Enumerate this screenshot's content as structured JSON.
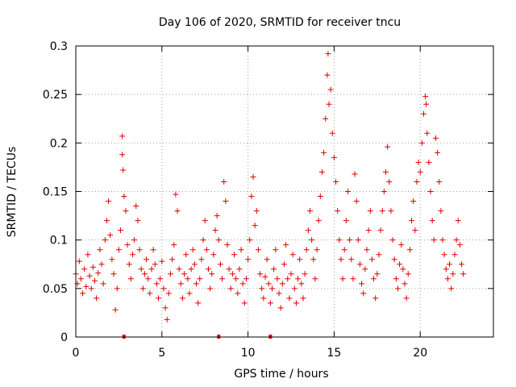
{
  "chart_data": {
    "type": "scatter",
    "title": "Day 106 of 2020, SRMTID for receiver tncu",
    "xlabel": "GPS time / hours",
    "ylabel": "SRMTID / TECUs",
    "xlim": [
      0,
      24.25
    ],
    "ylim": [
      0,
      0.3
    ],
    "xticks": [
      0,
      5,
      10,
      15,
      20
    ],
    "xtick_labels": [
      "0",
      "5",
      "10",
      "15",
      "20"
    ],
    "yticks": [
      0,
      0.05,
      0.1,
      0.15,
      0.2,
      0.25,
      0.3
    ],
    "ytick_labels": [
      "0",
      "0.05",
      "0.1",
      "0.15",
      "0.2",
      "0.25",
      "0.3"
    ],
    "grid": true,
    "marker_color": "#e00000",
    "marker": "plus",
    "zero_markers_x": [
      2.8,
      8.3,
      11.3
    ],
    "series": [
      {
        "name": "SRMTID",
        "points": [
          [
            0.0,
            0.065
          ],
          [
            0.1,
            0.055
          ],
          [
            0.2,
            0.078
          ],
          [
            0.3,
            0.06
          ],
          [
            0.4,
            0.045
          ],
          [
            0.5,
            0.07
          ],
          [
            0.6,
            0.052
          ],
          [
            0.7,
            0.085
          ],
          [
            0.8,
            0.063
          ],
          [
            0.9,
            0.05
          ],
          [
            1.0,
            0.072
          ],
          [
            1.1,
            0.058
          ],
          [
            1.2,
            0.04
          ],
          [
            1.3,
            0.066
          ],
          [
            1.4,
            0.09
          ],
          [
            1.5,
            0.075
          ],
          [
            1.6,
            0.055
          ],
          [
            1.7,
            0.1
          ],
          [
            1.8,
            0.12
          ],
          [
            1.9,
            0.14
          ],
          [
            2.0,
            0.105
          ],
          [
            2.1,
            0.08
          ],
          [
            2.2,
            0.065
          ],
          [
            2.3,
            0.028
          ],
          [
            2.4,
            0.05
          ],
          [
            2.5,
            0.09
          ],
          [
            2.6,
            0.11
          ],
          [
            2.7,
            0.207
          ],
          [
            2.7,
            0.188
          ],
          [
            2.75,
            0.172
          ],
          [
            2.8,
            0.145
          ],
          [
            2.9,
            0.13
          ],
          [
            3.0,
            0.095
          ],
          [
            3.1,
            0.075
          ],
          [
            3.2,
            0.06
          ],
          [
            3.3,
            0.085
          ],
          [
            3.4,
            0.1
          ],
          [
            3.5,
            0.135
          ],
          [
            3.6,
            0.12
          ],
          [
            3.7,
            0.09
          ],
          [
            3.8,
            0.07
          ],
          [
            3.9,
            0.05
          ],
          [
            4.0,
            0.065
          ],
          [
            4.1,
            0.08
          ],
          [
            4.2,
            0.06
          ],
          [
            4.3,
            0.045
          ],
          [
            4.4,
            0.07
          ],
          [
            4.5,
            0.09
          ],
          [
            4.6,
            0.075
          ],
          [
            4.7,
            0.055
          ],
          [
            4.8,
            0.04
          ],
          [
            4.9,
            0.06
          ],
          [
            5.0,
            0.078
          ],
          [
            5.1,
            0.05
          ],
          [
            5.2,
            0.03
          ],
          [
            5.3,
            0.018
          ],
          [
            5.4,
            0.045
          ],
          [
            5.5,
            0.065
          ],
          [
            5.6,
            0.08
          ],
          [
            5.7,
            0.095
          ],
          [
            5.8,
            0.147
          ],
          [
            5.9,
            0.13
          ],
          [
            6.0,
            0.07
          ],
          [
            6.1,
            0.055
          ],
          [
            6.2,
            0.04
          ],
          [
            6.3,
            0.065
          ],
          [
            6.4,
            0.085
          ],
          [
            6.5,
            0.06
          ],
          [
            6.6,
            0.045
          ],
          [
            6.7,
            0.07
          ],
          [
            6.8,
            0.09
          ],
          [
            6.9,
            0.075
          ],
          [
            7.0,
            0.055
          ],
          [
            7.1,
            0.035
          ],
          [
            7.2,
            0.06
          ],
          [
            7.3,
            0.08
          ],
          [
            7.4,
            0.1
          ],
          [
            7.5,
            0.12
          ],
          [
            7.6,
            0.09
          ],
          [
            7.7,
            0.07
          ],
          [
            7.8,
            0.05
          ],
          [
            7.9,
            0.065
          ],
          [
            8.0,
            0.085
          ],
          [
            8.1,
            0.11
          ],
          [
            8.2,
            0.125
          ],
          [
            8.3,
            0.1
          ],
          [
            8.4,
            0.075
          ],
          [
            8.5,
            0.06
          ],
          [
            8.6,
            0.16
          ],
          [
            8.7,
            0.14
          ],
          [
            8.8,
            0.095
          ],
          [
            8.9,
            0.07
          ],
          [
            9.0,
            0.05
          ],
          [
            9.1,
            0.065
          ],
          [
            9.2,
            0.085
          ],
          [
            9.3,
            0.06
          ],
          [
            9.4,
            0.045
          ],
          [
            9.5,
            0.07
          ],
          [
            9.6,
            0.09
          ],
          [
            9.7,
            0.055
          ],
          [
            9.8,
            0.035
          ],
          [
            9.9,
            0.06
          ],
          [
            10.0,
            0.08
          ],
          [
            10.1,
            0.1
          ],
          [
            10.2,
            0.145
          ],
          [
            10.3,
            0.165
          ],
          [
            10.4,
            0.115
          ],
          [
            10.5,
            0.13
          ],
          [
            10.6,
            0.09
          ],
          [
            10.7,
            0.065
          ],
          [
            10.8,
            0.05
          ],
          [
            10.9,
            0.04
          ],
          [
            11.0,
            0.062
          ],
          [
            11.1,
            0.08
          ],
          [
            11.2,
            0.055
          ],
          [
            11.3,
            0.035
          ],
          [
            11.4,
            0.05
          ],
          [
            11.5,
            0.07
          ],
          [
            11.6,
            0.09
          ],
          [
            11.7,
            0.06
          ],
          [
            11.8,
            0.045
          ],
          [
            11.9,
            0.03
          ],
          [
            12.0,
            0.055
          ],
          [
            12.1,
            0.075
          ],
          [
            12.2,
            0.095
          ],
          [
            12.3,
            0.06
          ],
          [
            12.4,
            0.04
          ],
          [
            12.5,
            0.065
          ],
          [
            12.6,
            0.085
          ],
          [
            12.7,
            0.05
          ],
          [
            12.8,
            0.035
          ],
          [
            12.9,
            0.06
          ],
          [
            13.0,
            0.08
          ],
          [
            13.1,
            0.055
          ],
          [
            13.2,
            0.04
          ],
          [
            13.3,
            0.065
          ],
          [
            13.4,
            0.09
          ],
          [
            13.5,
            0.11
          ],
          [
            13.6,
            0.13
          ],
          [
            13.7,
            0.1
          ],
          [
            13.8,
            0.08
          ],
          [
            13.9,
            0.06
          ],
          [
            14.0,
            0.09
          ],
          [
            14.1,
            0.12
          ],
          [
            14.2,
            0.145
          ],
          [
            14.3,
            0.17
          ],
          [
            14.4,
            0.19
          ],
          [
            14.5,
            0.225
          ],
          [
            14.6,
            0.27
          ],
          [
            14.65,
            0.292
          ],
          [
            14.7,
            0.24
          ],
          [
            14.8,
            0.255
          ],
          [
            14.9,
            0.21
          ],
          [
            15.0,
            0.185
          ],
          [
            15.1,
            0.16
          ],
          [
            15.2,
            0.13
          ],
          [
            15.3,
            0.1
          ],
          [
            15.4,
            0.08
          ],
          [
            15.5,
            0.06
          ],
          [
            15.6,
            0.09
          ],
          [
            15.7,
            0.12
          ],
          [
            15.8,
            0.15
          ],
          [
            15.9,
            0.1
          ],
          [
            16.0,
            0.08
          ],
          [
            16.1,
            0.06
          ],
          [
            16.2,
            0.168
          ],
          [
            16.3,
            0.14
          ],
          [
            16.4,
            0.1
          ],
          [
            16.5,
            0.075
          ],
          [
            16.6,
            0.055
          ],
          [
            16.7,
            0.045
          ],
          [
            16.8,
            0.07
          ],
          [
            16.9,
            0.09
          ],
          [
            17.0,
            0.11
          ],
          [
            17.1,
            0.13
          ],
          [
            17.2,
            0.08
          ],
          [
            17.3,
            0.06
          ],
          [
            17.4,
            0.04
          ],
          [
            17.5,
            0.065
          ],
          [
            17.6,
            0.085
          ],
          [
            17.7,
            0.11
          ],
          [
            17.8,
            0.13
          ],
          [
            17.9,
            0.15
          ],
          [
            18.0,
            0.17
          ],
          [
            18.1,
            0.196
          ],
          [
            18.2,
            0.16
          ],
          [
            18.3,
            0.13
          ],
          [
            18.4,
            0.1
          ],
          [
            18.5,
            0.08
          ],
          [
            18.6,
            0.06
          ],
          [
            18.7,
            0.05
          ],
          [
            18.8,
            0.075
          ],
          [
            18.9,
            0.095
          ],
          [
            19.0,
            0.07
          ],
          [
            19.1,
            0.055
          ],
          [
            19.2,
            0.04
          ],
          [
            19.3,
            0.065
          ],
          [
            19.4,
            0.09
          ],
          [
            19.5,
            0.12
          ],
          [
            19.6,
            0.14
          ],
          [
            19.7,
            0.11
          ],
          [
            19.8,
            0.16
          ],
          [
            19.9,
            0.18
          ],
          [
            20.0,
            0.17
          ],
          [
            20.1,
            0.2
          ],
          [
            20.2,
            0.23
          ],
          [
            20.3,
            0.248
          ],
          [
            20.35,
            0.24
          ],
          [
            20.4,
            0.21
          ],
          [
            20.5,
            0.18
          ],
          [
            20.6,
            0.15
          ],
          [
            20.7,
            0.12
          ],
          [
            20.8,
            0.1
          ],
          [
            20.9,
            0.205
          ],
          [
            21.0,
            0.19
          ],
          [
            21.1,
            0.16
          ],
          [
            21.2,
            0.13
          ],
          [
            21.3,
            0.1
          ],
          [
            21.4,
            0.085
          ],
          [
            21.5,
            0.07
          ],
          [
            21.6,
            0.06
          ],
          [
            21.7,
            0.075
          ],
          [
            21.8,
            0.05
          ],
          [
            21.9,
            0.065
          ],
          [
            22.0,
            0.085
          ],
          [
            22.1,
            0.1
          ],
          [
            22.2,
            0.12
          ],
          [
            22.3,
            0.095
          ],
          [
            22.4,
            0.075
          ],
          [
            22.5,
            0.065
          ]
        ]
      }
    ]
  }
}
